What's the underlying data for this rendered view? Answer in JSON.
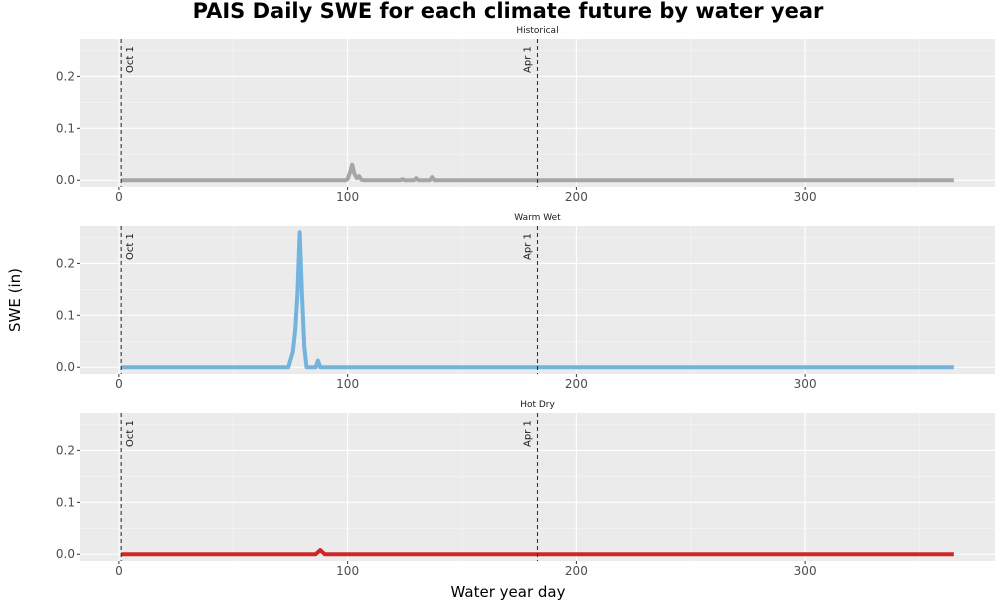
{
  "chart_data": {
    "type": "line",
    "title": "PAIS Daily SWE for each climate future by water year",
    "xlabel": "Water year day",
    "ylabel": "SWE (in)",
    "xlim": [
      -17,
      383
    ],
    "ylim": [
      -0.013,
      0.272
    ],
    "x_ticks": [
      0,
      100,
      200,
      300
    ],
    "y_ticks": [
      0.0,
      0.1,
      0.2
    ],
    "x_tick_labels": [
      "0",
      "100",
      "200",
      "300"
    ],
    "y_tick_labels": [
      "0.0",
      "0.1",
      "0.2"
    ],
    "grid": true,
    "reference_lines": [
      {
        "x": 1,
        "label": "Oct 1"
      },
      {
        "x": 183,
        "label": "Apr 1"
      }
    ],
    "panels": [
      {
        "name": "Historical",
        "color": "#a6a6a6",
        "points": [
          [
            1,
            0
          ],
          [
            99,
            0
          ],
          [
            100,
            0.002
          ],
          [
            101,
            0.015
          ],
          [
            102,
            0.03
          ],
          [
            103,
            0.012
          ],
          [
            104,
            0.004
          ],
          [
            105,
            0.008
          ],
          [
            106,
            0.001
          ],
          [
            107,
            0
          ],
          [
            123,
            0
          ],
          [
            124,
            0.002
          ],
          [
            125,
            0
          ],
          [
            129,
            0
          ],
          [
            130,
            0.004
          ],
          [
            131,
            0
          ],
          [
            136,
            0
          ],
          [
            137,
            0.006
          ],
          [
            138,
            0
          ],
          [
            365,
            0
          ]
        ]
      },
      {
        "name": "Warm Wet",
        "color": "#73b3dd",
        "points": [
          [
            1,
            0
          ],
          [
            74,
            0
          ],
          [
            75,
            0.015
          ],
          [
            76,
            0.03
          ],
          [
            77,
            0.07
          ],
          [
            78,
            0.14
          ],
          [
            79,
            0.26
          ],
          [
            80,
            0.14
          ],
          [
            81,
            0.04
          ],
          [
            82,
            0
          ],
          [
            86,
            0
          ],
          [
            87,
            0.013
          ],
          [
            88,
            0
          ],
          [
            365,
            0
          ]
        ]
      },
      {
        "name": "Hot Dry",
        "color": "#d12528",
        "points": [
          [
            1,
            0
          ],
          [
            86,
            0
          ],
          [
            87,
            0.004
          ],
          [
            88,
            0.008
          ],
          [
            89,
            0.004
          ],
          [
            90,
            0
          ],
          [
            365,
            0
          ]
        ]
      }
    ]
  }
}
